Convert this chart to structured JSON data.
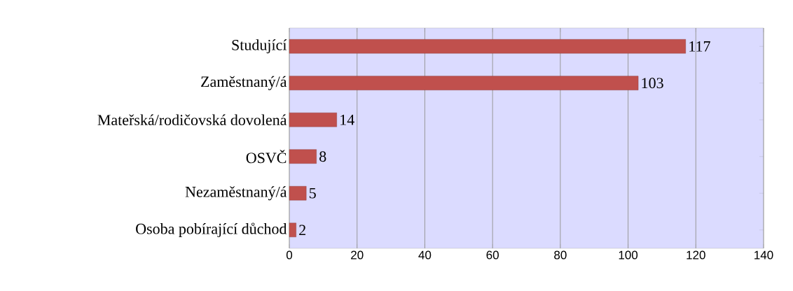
{
  "chart_data": {
    "type": "bar",
    "orientation": "horizontal",
    "categories": [
      "Studující",
      "Zaměstnaný/á",
      "Mateřská/rodičovská dovolená",
      "OSVČ",
      "Nezaměstnaný/á",
      "Osoba pobírající důchod"
    ],
    "values": [
      117,
      103,
      14,
      8,
      5,
      2
    ],
    "color": "#c0504d",
    "xlim": [
      0,
      140
    ],
    "xticks": [
      0,
      20,
      40,
      60,
      80,
      100,
      120,
      140
    ],
    "grid": "x",
    "data_labels": true
  }
}
